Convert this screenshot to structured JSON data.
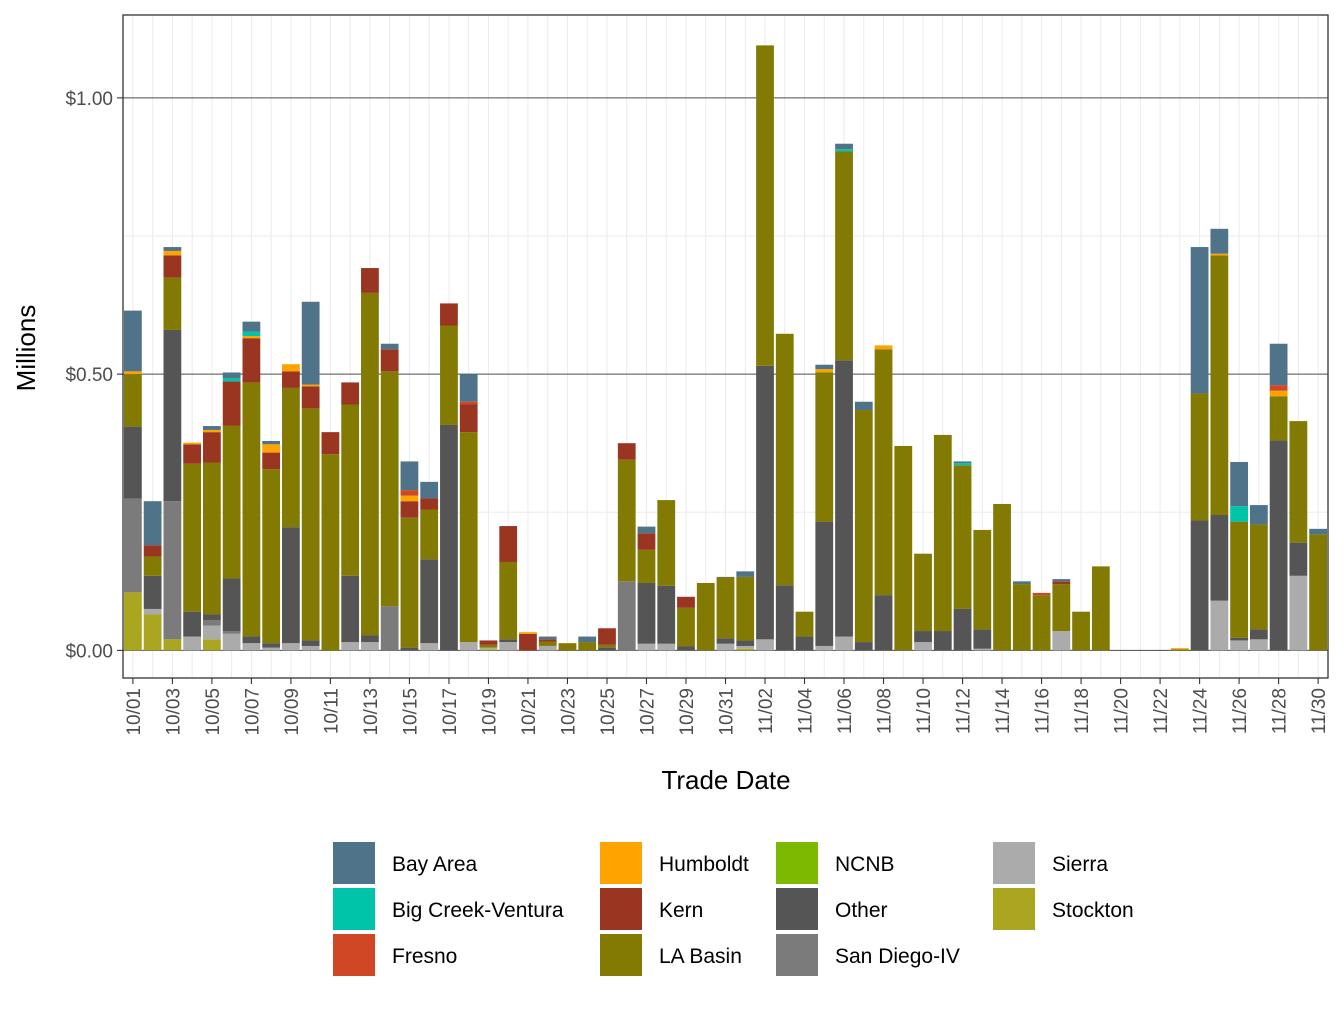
{
  "chart_data": {
    "type": "bar",
    "stacked": true,
    "xlabel": "Trade Date",
    "ylabel": "Millions",
    "ylim": [
      -0.05,
      1.15
    ],
    "yticks": [
      0.0,
      0.5,
      1.0
    ],
    "ytick_labels": [
      "$0.00",
      "$0.50",
      "$1.00"
    ],
    "grid": true,
    "legend_position": "bottom",
    "categories": [
      "10/01",
      "10/02",
      "10/03",
      "10/04",
      "10/05",
      "10/06",
      "10/07",
      "10/08",
      "10/09",
      "10/10",
      "10/11",
      "10/12",
      "10/13",
      "10/14",
      "10/15",
      "10/16",
      "10/17",
      "10/18",
      "10/19",
      "10/20",
      "10/21",
      "10/22",
      "10/23",
      "10/24",
      "10/25",
      "10/26",
      "10/27",
      "10/28",
      "10/29",
      "10/30",
      "10/31",
      "11/01",
      "11/02",
      "11/03",
      "11/04",
      "11/05",
      "11/06",
      "11/07",
      "11/08",
      "11/09",
      "11/10",
      "11/11",
      "11/12",
      "11/13",
      "11/14",
      "11/15",
      "11/16",
      "11/17",
      "11/18",
      "11/19",
      "11/20",
      "11/21",
      "11/22",
      "11/23",
      "11/24",
      "11/25",
      "11/26",
      "11/27",
      "11/28",
      "11/29",
      "11/30"
    ],
    "xtick_labels": [
      "10/01",
      "10/03",
      "10/05",
      "10/07",
      "10/09",
      "10/11",
      "10/13",
      "10/15",
      "10/17",
      "10/19",
      "10/21",
      "10/23",
      "10/25",
      "10/27",
      "10/29",
      "10/31",
      "11/02",
      "11/04",
      "11/06",
      "11/08",
      "11/10",
      "11/12",
      "11/14",
      "11/16",
      "11/18",
      "11/20",
      "11/22",
      "11/24",
      "11/26",
      "11/28",
      "11/30"
    ],
    "stack_order": [
      "Bay Area",
      "Big Creek-Ventura",
      "Fresno",
      "Humboldt",
      "Kern",
      "LA Basin",
      "NCNB",
      "Other",
      "San Diego-IV",
      "Sierra",
      "Stockton"
    ],
    "series": [
      {
        "name": "Bay Area",
        "color": "#4f7389",
        "values": [
          0.11,
          0.08,
          0.007,
          0,
          0.007,
          0.01,
          0.018,
          0.006,
          0,
          0.15,
          0,
          0,
          0,
          0.01,
          0.052,
          0.03,
          0,
          0.05,
          0,
          0,
          0,
          0.005,
          0,
          0.01,
          0,
          0,
          0.012,
          0,
          0,
          0,
          0.001,
          0.01,
          0,
          0,
          0,
          0.008,
          0.01,
          0.015,
          0,
          0,
          0,
          0,
          0.003,
          0,
          0,
          0.005,
          0,
          0.004,
          0,
          0,
          0,
          0,
          0,
          0,
          0.265,
          0.045,
          0.08,
          0.035,
          0.075,
          0,
          0.01
        ]
      },
      {
        "name": "Big Creek-Ventura",
        "color": "#00c4aa",
        "values": [
          0,
          0,
          0,
          0,
          0,
          0.006,
          0.008,
          0,
          0,
          0,
          0,
          0,
          0,
          0,
          0,
          0,
          0,
          0,
          0,
          0,
          0,
          0,
          0,
          0,
          0,
          0,
          0,
          0,
          0,
          0,
          0,
          0,
          0,
          0,
          0,
          0,
          0.004,
          0,
          0,
          0,
          0,
          0,
          0.004,
          0,
          0,
          0,
          0,
          0,
          0,
          0,
          0,
          0,
          0,
          0,
          0,
          0,
          0.028,
          0,
          0,
          0,
          0
        ]
      },
      {
        "name": "Fresno",
        "color": "#d04725",
        "values": [
          0,
          0,
          0,
          0,
          0,
          0,
          0,
          0,
          0,
          0,
          0,
          0,
          0,
          0,
          0.01,
          0,
          0,
          0.005,
          0,
          0,
          0,
          0,
          0,
          0,
          0,
          0,
          0,
          0,
          0,
          0,
          0,
          0,
          0,
          0,
          0,
          0,
          0,
          0,
          0,
          0,
          0,
          0,
          0,
          0,
          0,
          0,
          0.004,
          0,
          0,
          0,
          0,
          0,
          0,
          0,
          0,
          0,
          0,
          0,
          0.01,
          0,
          0
        ]
      },
      {
        "name": "Humboldt",
        "color": "#ffa300",
        "values": [
          0.005,
          0,
          0.008,
          0.003,
          0.004,
          0,
          0.004,
          0.015,
          0.013,
          0.003,
          0,
          0,
          0,
          0,
          0.01,
          0,
          0,
          0,
          0,
          0,
          0.003,
          0,
          0,
          0,
          0,
          0,
          0,
          0,
          0,
          0,
          0,
          0,
          0,
          0,
          0,
          0.006,
          0,
          0,
          0.007,
          0,
          0,
          0,
          0,
          0,
          0,
          0,
          0,
          0,
          0,
          0,
          0,
          0,
          0,
          0.002,
          0,
          0.003,
          0,
          0,
          0.01,
          0,
          0
        ]
      },
      {
        "name": "Kern",
        "color": "#9a3521",
        "values": [
          0,
          0.02,
          0.04,
          0.035,
          0.055,
          0.08,
          0.08,
          0.03,
          0.03,
          0.04,
          0.04,
          0.04,
          0.045,
          0.04,
          0.03,
          0.02,
          0.04,
          0.05,
          0.008,
          0.065,
          0.03,
          0.004,
          0,
          0,
          0.03,
          0.03,
          0.03,
          0,
          0.02,
          0,
          0,
          0,
          0,
          0,
          0,
          0,
          0,
          0,
          0,
          0,
          0,
          0,
          0,
          0,
          0,
          0,
          0,
          0.005,
          0,
          0,
          0,
          0,
          0,
          0,
          0,
          0,
          0,
          0,
          0,
          0,
          0
        ]
      },
      {
        "name": "LA Basin",
        "color": "#827a02",
        "values": [
          0.095,
          0.035,
          0.095,
          0.268,
          0.275,
          0.277,
          0.46,
          0.315,
          0.252,
          0.42,
          0.355,
          0.31,
          0.62,
          0.425,
          0.235,
          0.09,
          0.18,
          0.38,
          0.005,
          0.14,
          0,
          0.008,
          0.013,
          0.015,
          0.005,
          0.22,
          0.06,
          0.155,
          0.07,
          0.122,
          0.11,
          0.115,
          0.58,
          0.455,
          0.045,
          0.27,
          0.378,
          0.42,
          0.445,
          0.37,
          0.14,
          0.355,
          0.26,
          0.18,
          0.265,
          0.12,
          0.1,
          0.085,
          0.07,
          0.152,
          0,
          0,
          0,
          0.002,
          0.23,
          0.47,
          0.21,
          0.19,
          0.08,
          0.22,
          0.21
        ]
      },
      {
        "name": "NCNB",
        "color": "#7db900",
        "values": [
          0,
          0,
          0,
          0,
          0,
          0,
          0,
          0,
          0,
          0,
          0,
          0,
          0,
          0,
          0,
          0,
          0,
          0,
          0,
          0,
          0,
          0,
          0,
          0,
          0,
          0,
          0,
          0,
          0,
          0,
          0,
          0,
          0,
          0,
          0,
          0,
          0,
          0,
          0,
          0,
          0,
          0,
          0,
          0,
          0,
          0,
          0,
          0,
          0,
          0,
          0,
          0,
          0,
          0,
          0,
          0,
          0,
          0,
          0,
          0,
          0
        ]
      },
      {
        "name": "Other",
        "color": "#555555",
        "values": [
          0.13,
          0.06,
          0.31,
          0.045,
          0.01,
          0.095,
          0.012,
          0.008,
          0.21,
          0.01,
          0,
          0.12,
          0.012,
          0,
          0.005,
          0.152,
          0.408,
          0,
          0,
          0.005,
          0,
          0,
          0,
          0,
          0.005,
          0,
          0.11,
          0.105,
          0.007,
          0,
          0.01,
          0.01,
          0.495,
          0.118,
          0.025,
          0.225,
          0.5,
          0.015,
          0.1,
          0,
          0.02,
          0.035,
          0.075,
          0.035,
          0,
          0,
          0,
          0,
          0,
          0,
          0,
          0,
          0,
          0,
          0.235,
          0.155,
          0.005,
          0.018,
          0.38,
          0.06,
          0
        ]
      },
      {
        "name": "San Diego-IV",
        "color": "#7b7b7b",
        "values": [
          0.17,
          0,
          0.25,
          0,
          0.01,
          0.005,
          0,
          0,
          0,
          0,
          0,
          0,
          0,
          0.08,
          0,
          0,
          0,
          0,
          0,
          0,
          0,
          0,
          0,
          0,
          0,
          0.125,
          0,
          0,
          0,
          0,
          0,
          0,
          0,
          0,
          0,
          0,
          0,
          0,
          0,
          0,
          0,
          0,
          0,
          0,
          0,
          0,
          0,
          0,
          0,
          0,
          0,
          0,
          0,
          0,
          0,
          0,
          0,
          0,
          0,
          0,
          0
        ]
      },
      {
        "name": "Sierra",
        "color": "#ababab",
        "values": [
          0,
          0.01,
          0,
          0.025,
          0.025,
          0.03,
          0.013,
          0.005,
          0.013,
          0.008,
          0,
          0.015,
          0.015,
          0,
          0,
          0.013,
          0,
          0.015,
          0.003,
          0.015,
          0,
          0.008,
          0,
          0,
          0,
          0,
          0.012,
          0.012,
          0,
          0,
          0.012,
          0.005,
          0.02,
          0,
          0,
          0.008,
          0.025,
          0,
          0,
          0,
          0.015,
          0,
          0,
          0.003,
          0,
          0,
          0,
          0.035,
          0,
          0,
          0,
          0,
          0,
          0,
          0,
          0.09,
          0.018,
          0.02,
          0,
          0.135,
          0
        ]
      },
      {
        "name": "Stockton",
        "color": "#aba620",
        "values": [
          0.105,
          0.065,
          0.02,
          0,
          0.02,
          0,
          0,
          0,
          0,
          0,
          0,
          0,
          0,
          0,
          0,
          0,
          0,
          0,
          0.002,
          0,
          0,
          0,
          0,
          0,
          0,
          0,
          0,
          0,
          0,
          0,
          0,
          0.003,
          0,
          0,
          0,
          0,
          0,
          0,
          0,
          0,
          0,
          0,
          0,
          0,
          0,
          0,
          0,
          0,
          0,
          0,
          0,
          0,
          0,
          0,
          0,
          0,
          0,
          0,
          0,
          0,
          0
        ]
      }
    ]
  }
}
